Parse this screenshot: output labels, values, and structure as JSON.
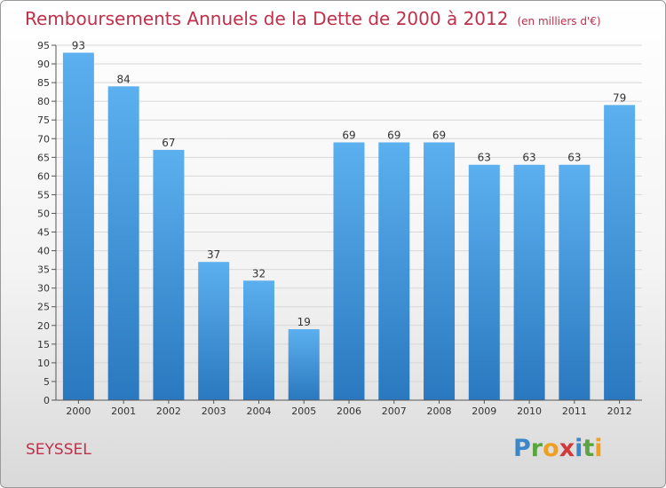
{
  "header": {
    "title": "Remboursements Annuels de la Dette de 2000 à 2012",
    "unit": "(en milliers d'€)"
  },
  "footer": {
    "commune": "SEYSSEL",
    "logo_letters": [
      {
        "ch": "P",
        "color": "#3a86c8"
      },
      {
        "ch": "r",
        "color": "#5aa540"
      },
      {
        "ch": "o",
        "color": "#f0a020"
      },
      {
        "ch": "x",
        "color": "#d23a3a"
      },
      {
        "ch": "i",
        "color": "#3a86c8"
      },
      {
        "ch": "t",
        "color": "#5aa540"
      },
      {
        "ch": "i",
        "color": "#f0a020"
      }
    ]
  },
  "chart_data": {
    "type": "bar",
    "title": "Remboursements Annuels de la Dette de 2000 à 2012",
    "xlabel": "",
    "ylabel": "",
    "categories": [
      "2000",
      "2001",
      "2002",
      "2003",
      "2004",
      "2005",
      "2006",
      "2007",
      "2008",
      "2009",
      "2010",
      "2011",
      "2012"
    ],
    "values": [
      93,
      84,
      67,
      37,
      32,
      19,
      69,
      69,
      69,
      63,
      63,
      63,
      79
    ],
    "ylim": [
      0,
      95
    ],
    "yticks": [
      0,
      5,
      10,
      15,
      20,
      25,
      30,
      35,
      40,
      45,
      50,
      55,
      60,
      65,
      70,
      75,
      80,
      85,
      90,
      95
    ],
    "grid": true,
    "bar_color": "#3d95dc"
  }
}
